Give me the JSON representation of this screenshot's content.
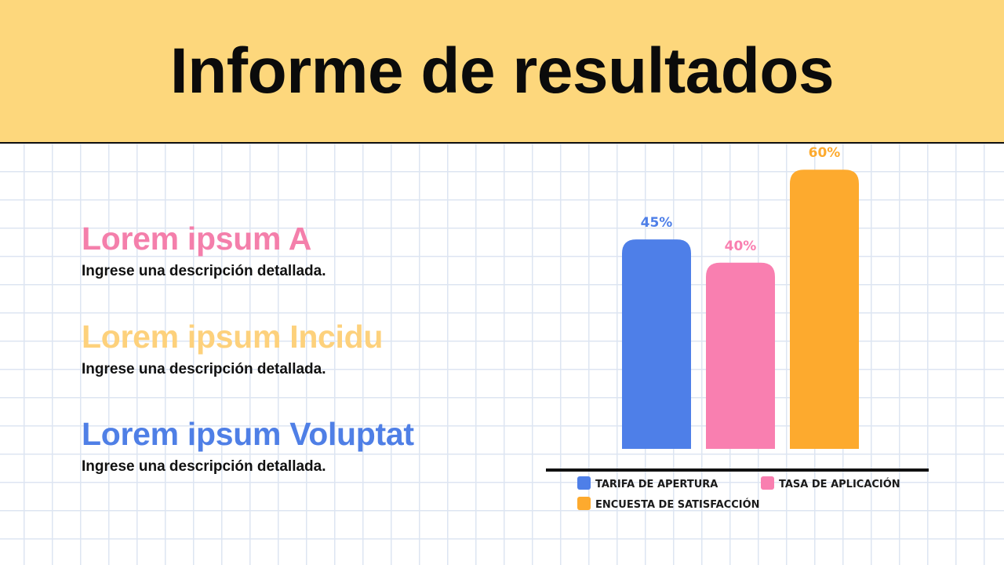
{
  "header": {
    "title": "Informe de resultados"
  },
  "items": [
    {
      "title": "Lorem ipsum A",
      "color": "#f47fab",
      "description": "Ingrese una descripción detallada."
    },
    {
      "title": "Lorem ipsum Incidu",
      "color": "#fdd17c",
      "description": "Ingrese una descripción detallada."
    },
    {
      "title": "Lorem ipsum Voluptat",
      "color": "#4f7fe6",
      "description": "Ingrese una descripción detallada."
    }
  ],
  "chart_data": {
    "type": "bar",
    "categories": [
      "TARIFA DE APERTURA",
      "TASA DE APLICACIÓN",
      "ENCUESTA DE SATISFACCIÓN"
    ],
    "values": [
      45,
      40,
      60
    ],
    "value_labels": [
      "45%",
      "40%",
      "60%"
    ],
    "colors": [
      "#4e7fe8",
      "#f97fb0",
      "#fdaa2e"
    ],
    "title": "",
    "xlabel": "",
    "ylabel": "",
    "ylim": [
      0,
      100
    ],
    "grid": false,
    "legend": "bottom"
  }
}
